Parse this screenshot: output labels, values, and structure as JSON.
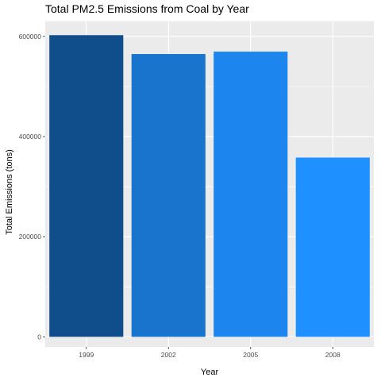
{
  "chart_data": {
    "type": "bar",
    "title": "Total PM2.5 Emissions from Coal by Year",
    "xlabel": "Year",
    "ylabel": "Total Emissions (tons)",
    "categories": [
      "1999",
      "2002",
      "2005",
      "2008"
    ],
    "values": [
      602600,
      564900,
      569700,
      358100
    ],
    "ylim": [
      -20000,
      630000
    ],
    "yticks": [
      0,
      200000,
      400000,
      600000
    ],
    "ytick_labels": [
      "0",
      "200000",
      "400000",
      "600000"
    ],
    "bar_colors": [
      "#104E8B",
      "#1874CD",
      "#1C86EE",
      "#1E90FF"
    ],
    "panel_background": "#EBEBEB",
    "grid": true,
    "legend": "none"
  }
}
